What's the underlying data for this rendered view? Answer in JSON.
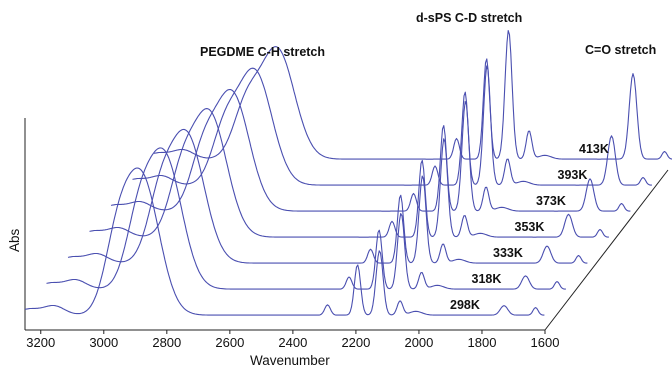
{
  "chart_data": {
    "type": "line",
    "style": "waterfall-3d",
    "xlabel": "Wavenumber",
    "ylabel": "Abs",
    "xlim": [
      3250,
      1600
    ],
    "x_reversed": true,
    "x_ticks": [
      "3200",
      "3000",
      "2800",
      "2600",
      "2400",
      "2200",
      "2000",
      "1800",
      "1600"
    ],
    "line_color": "#4a4fb0",
    "annotations": [
      {
        "text": "PEGDME C-H stretch",
        "x": 2850
      },
      {
        "text": "d-sPS C-D stretch",
        "x": 2150
      },
      {
        "text": "C=O stretch",
        "x": 1730
      }
    ],
    "series": [
      {
        "name": "298K",
        "ch_peak": 0.72,
        "cd_peak": 0.34,
        "co_peak": 0.05
      },
      {
        "name": "318K",
        "ch_peak": 0.7,
        "cd_peak": 0.4,
        "co_peak": 0.07
      },
      {
        "name": "333K",
        "ch_peak": 0.67,
        "cd_peak": 0.46,
        "co_peak": 0.09
      },
      {
        "name": "353K",
        "ch_peak": 0.65,
        "cd_peak": 0.52,
        "co_peak": 0.12
      },
      {
        "name": "373K",
        "ch_peak": 0.62,
        "cd_peak": 0.58,
        "co_peak": 0.17
      },
      {
        "name": "393K",
        "ch_peak": 0.6,
        "cd_peak": 0.63,
        "co_peak": 0.26
      },
      {
        "name": "413K",
        "ch_peak": 0.58,
        "cd_peak": 0.68,
        "co_peak": 0.45
      }
    ]
  }
}
